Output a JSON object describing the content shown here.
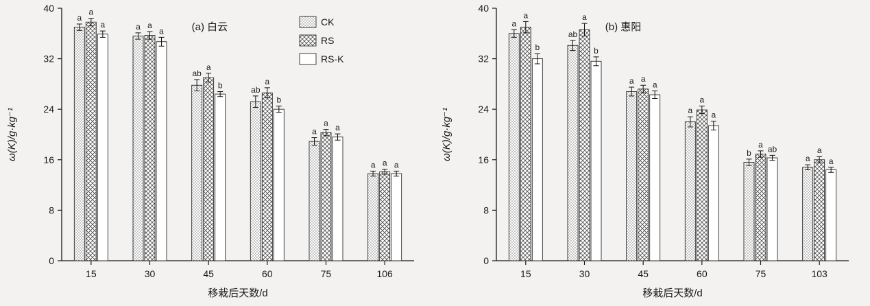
{
  "figure": {
    "background": "#f3f2f0",
    "text_color": "#1a1a1a",
    "bar_edge_color": "#2b2b2b",
    "pattern_color": "#4a4a4a",
    "error_bar_color": "#111111"
  },
  "chart_data": [
    {
      "type": "bar",
      "title": "(a) 白云",
      "xlabel": "移栽后天数/d",
      "ylabel": "ω(K)/g·kg⁻¹",
      "ylim": [
        0,
        40
      ],
      "yticks": [
        0,
        8,
        16,
        24,
        32,
        40
      ],
      "categories": [
        "15",
        "30",
        "45",
        "60",
        "75",
        "106"
      ],
      "legend": {
        "show": true,
        "items": [
          "CK",
          "RS",
          "RS-K"
        ],
        "position": "upper-right-inside"
      },
      "grid": false,
      "series": [
        {
          "name": "CK",
          "pattern": "dots",
          "values": [
            37.0,
            35.6,
            27.8,
            25.2,
            18.9,
            13.8
          ],
          "errors": [
            0.5,
            0.5,
            0.9,
            0.9,
            0.6,
            0.4
          ],
          "letters": [
            "a",
            "a",
            "ab",
            "ab",
            "a",
            "a"
          ]
        },
        {
          "name": "RS",
          "pattern": "cross",
          "values": [
            37.8,
            35.7,
            29.0,
            26.6,
            20.3,
            14.1
          ],
          "errors": [
            0.6,
            0.6,
            0.7,
            0.8,
            0.5,
            0.4
          ],
          "letters": [
            "a",
            "a",
            "a",
            "a",
            "a",
            "a"
          ]
        },
        {
          "name": "RS-K",
          "pattern": "plain",
          "values": [
            35.9,
            34.7,
            26.4,
            24.0,
            19.6,
            13.8
          ],
          "errors": [
            0.5,
            0.7,
            0.4,
            0.5,
            0.5,
            0.4
          ],
          "letters": [
            "a",
            "a",
            "b",
            "b",
            "a",
            "a"
          ]
        }
      ]
    },
    {
      "type": "bar",
      "title": "(b) 惠阳",
      "xlabel": "移栽后天数/d",
      "ylabel": "ω(K)/g·kg⁻¹",
      "ylim": [
        0,
        40
      ],
      "yticks": [
        0,
        8,
        16,
        24,
        32,
        40
      ],
      "categories": [
        "15",
        "30",
        "45",
        "60",
        "75",
        "103"
      ],
      "legend": {
        "show": false,
        "items": [
          "CK",
          "RS",
          "RS-K"
        ],
        "position": "none"
      },
      "grid": false,
      "series": [
        {
          "name": "CK",
          "pattern": "dots",
          "values": [
            36.0,
            34.1,
            26.8,
            22.0,
            15.6,
            14.8
          ],
          "errors": [
            0.6,
            0.8,
            0.7,
            0.8,
            0.5,
            0.4
          ],
          "letters": [
            "a",
            "ab",
            "a",
            "a",
            "b",
            "a"
          ]
        },
        {
          "name": "RS",
          "pattern": "cross",
          "values": [
            37.0,
            36.6,
            27.2,
            23.9,
            16.9,
            16.0
          ],
          "errors": [
            0.9,
            1.0,
            0.6,
            0.6,
            0.5,
            0.5
          ],
          "letters": [
            "a",
            "a",
            "a",
            "a",
            "a",
            "a"
          ]
        },
        {
          "name": "RS-K",
          "pattern": "plain",
          "values": [
            32.0,
            31.6,
            26.3,
            21.4,
            16.3,
            14.4
          ],
          "errors": [
            0.8,
            0.7,
            0.6,
            0.7,
            0.4,
            0.4
          ],
          "letters": [
            "b",
            "b",
            "a",
            "a",
            "ab",
            "a"
          ]
        }
      ]
    }
  ]
}
